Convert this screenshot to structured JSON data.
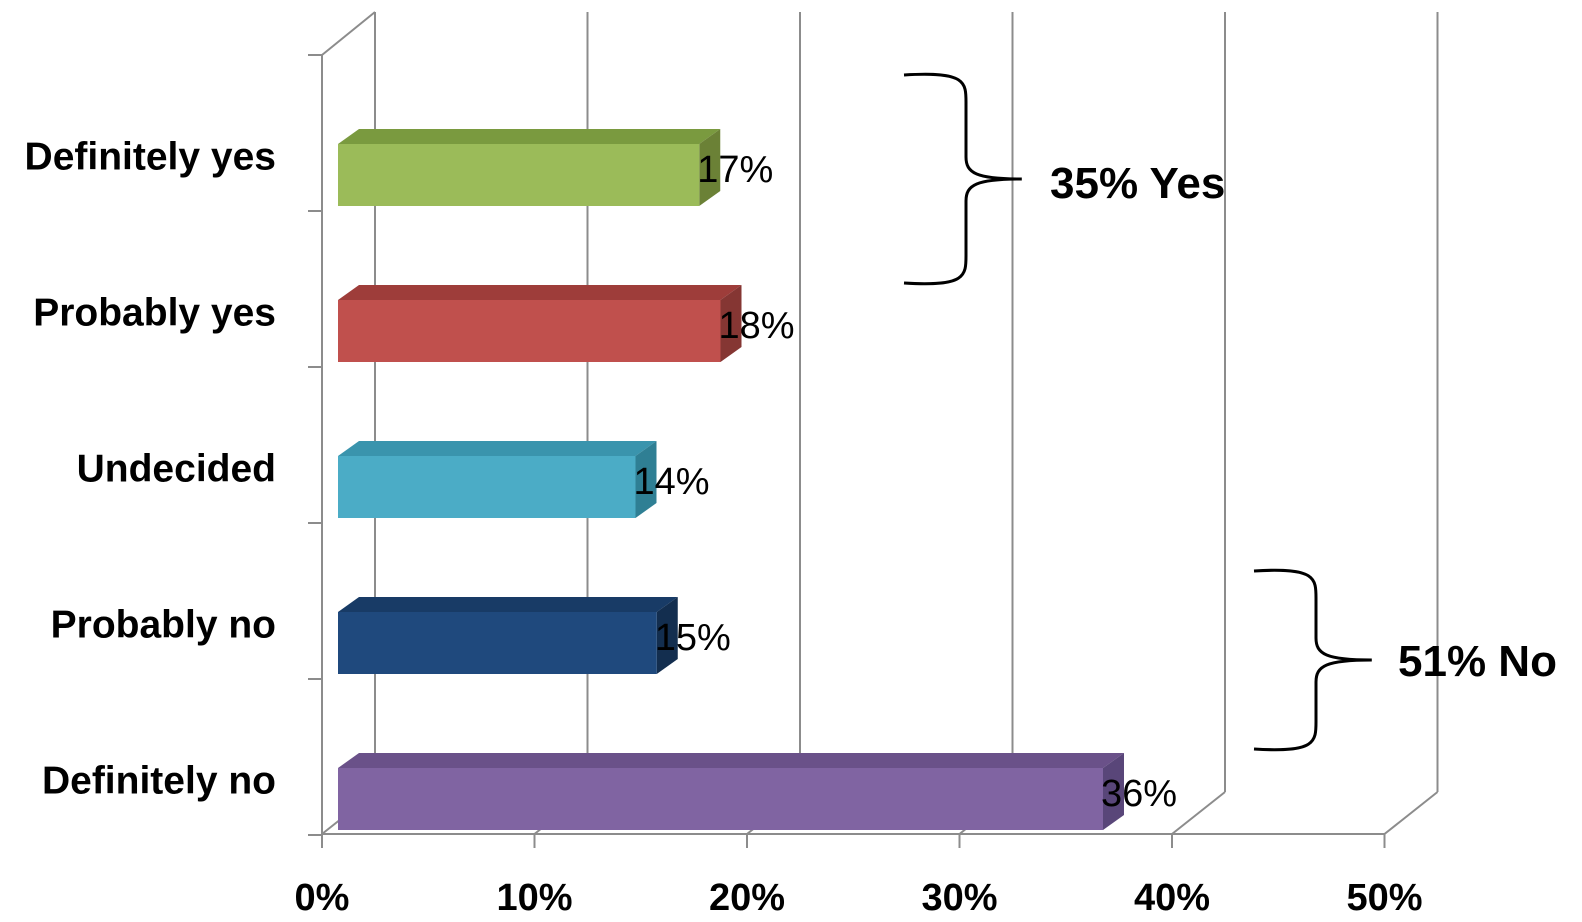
{
  "chart_data": {
    "type": "bar",
    "orientation": "horizontal",
    "style": "3d",
    "categories": [
      "Definitely yes",
      "Probably yes",
      "Undecided",
      "Probably no",
      "Definitely no"
    ],
    "values": [
      17,
      18,
      14,
      15,
      36
    ],
    "data_labels": [
      "17%",
      "18%",
      "14%",
      "15%",
      "36%"
    ],
    "colors": [
      "#9BBB59",
      "#C0504D",
      "#4BACC6",
      "#1F497D",
      "#8064A2"
    ],
    "side_colors": [
      "#6B8136",
      "#853633",
      "#2F7F94",
      "#132E4F",
      "#594679"
    ],
    "top_colors": [
      "#7A9A3F",
      "#9E3D3A",
      "#3A94AD",
      "#183B66",
      "#6A5189"
    ],
    "xlim": [
      0,
      50
    ],
    "x_ticks": [
      0,
      10,
      20,
      30,
      40,
      50
    ],
    "x_tick_labels": [
      "0%",
      "10%",
      "20%",
      "30%",
      "40%",
      "50%"
    ],
    "xlabel": "",
    "ylabel": "",
    "title": "",
    "grid": true,
    "legend": "none",
    "annotations": [
      {
        "text": "35% Yes",
        "groups": [
          "Definitely yes",
          "Probably yes"
        ]
      },
      {
        "text": "51% No",
        "groups": [
          "Probably no",
          "Definitely no"
        ]
      }
    ]
  }
}
